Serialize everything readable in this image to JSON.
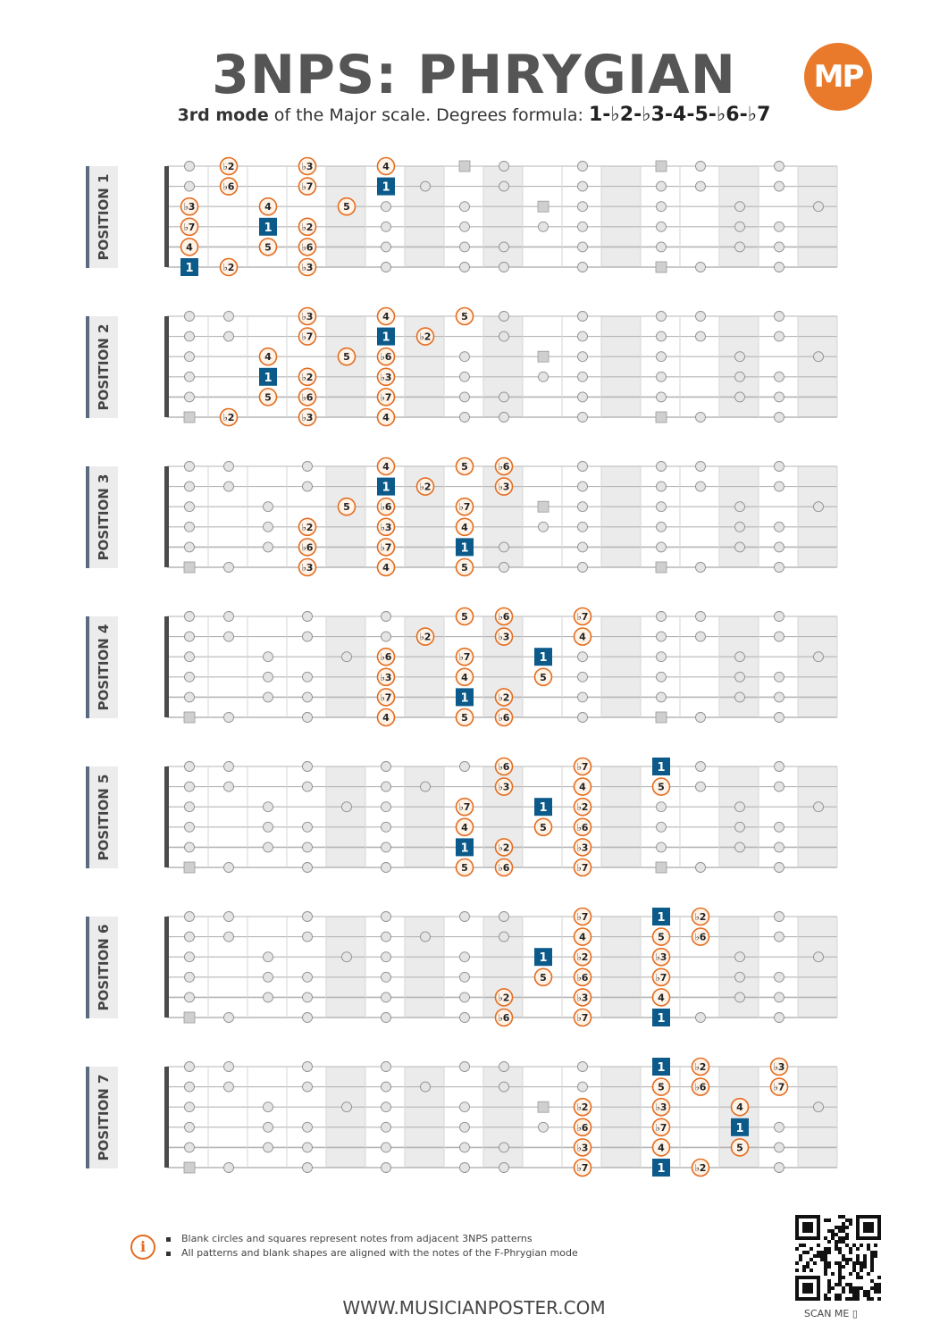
{
  "header": {
    "title": "3NPS: PHRYGIAN",
    "subtitle_bold": "3rd mode",
    "subtitle_text": " of the Major scale. Degrees formula: ",
    "formula": "1-♭2-♭3-4-5-♭6-♭7",
    "logo": "MP"
  },
  "colors": {
    "accent": "#e36c1f",
    "root": "#0b5a8a",
    "ghost": "#cfcfcf",
    "shade": "#ebebeb"
  },
  "positions": [
    {
      "label": "POSITION 1",
      "notes": [
        [
          6,
          0,
          "1"
        ],
        [
          6,
          1,
          "♭2"
        ],
        [
          6,
          3,
          "♭3"
        ],
        [
          5,
          0,
          "4"
        ],
        [
          5,
          2,
          "5"
        ],
        [
          5,
          3,
          "♭6"
        ],
        [
          4,
          0,
          "♭7"
        ],
        [
          4,
          2,
          "1"
        ],
        [
          4,
          3,
          "♭2"
        ],
        [
          3,
          0,
          "♭3"
        ],
        [
          3,
          2,
          "4"
        ],
        [
          3,
          4,
          "5"
        ],
        [
          2,
          1,
          "♭6"
        ],
        [
          2,
          3,
          "♭7"
        ],
        [
          2,
          5,
          "1"
        ],
        [
          1,
          1,
          "♭2"
        ],
        [
          1,
          3,
          "♭3"
        ],
        [
          1,
          5,
          "4"
        ]
      ]
    },
    {
      "label": "POSITION 2",
      "notes": [
        [
          6,
          1,
          "♭2"
        ],
        [
          6,
          3,
          "♭3"
        ],
        [
          6,
          5,
          "4"
        ],
        [
          5,
          2,
          "5"
        ],
        [
          5,
          3,
          "♭6"
        ],
        [
          5,
          5,
          "♭7"
        ],
        [
          4,
          2,
          "1"
        ],
        [
          4,
          3,
          "♭2"
        ],
        [
          4,
          5,
          "♭3"
        ],
        [
          3,
          2,
          "4"
        ],
        [
          3,
          4,
          "5"
        ],
        [
          3,
          5,
          "♭6"
        ],
        [
          2,
          3,
          "♭7"
        ],
        [
          2,
          5,
          "1"
        ],
        [
          2,
          6,
          "♭2"
        ],
        [
          1,
          3,
          "♭3"
        ],
        [
          1,
          5,
          "4"
        ],
        [
          1,
          7,
          "5"
        ]
      ]
    },
    {
      "label": "POSITION 3",
      "notes": [
        [
          6,
          3,
          "♭3"
        ],
        [
          6,
          5,
          "4"
        ],
        [
          6,
          7,
          "5"
        ],
        [
          5,
          3,
          "♭6"
        ],
        [
          5,
          5,
          "♭7"
        ],
        [
          5,
          7,
          "1"
        ],
        [
          4,
          3,
          "♭2"
        ],
        [
          4,
          5,
          "♭3"
        ],
        [
          4,
          7,
          "4"
        ],
        [
          3,
          4,
          "5"
        ],
        [
          3,
          5,
          "♭6"
        ],
        [
          3,
          7,
          "♭7"
        ],
        [
          2,
          5,
          "1"
        ],
        [
          2,
          6,
          "♭2"
        ],
        [
          2,
          8,
          "♭3"
        ],
        [
          1,
          5,
          "4"
        ],
        [
          1,
          7,
          "5"
        ],
        [
          1,
          8,
          "♭6"
        ]
      ]
    },
    {
      "label": "POSITION 4",
      "notes": [
        [
          6,
          5,
          "4"
        ],
        [
          6,
          7,
          "5"
        ],
        [
          6,
          8,
          "♭6"
        ],
        [
          5,
          5,
          "♭7"
        ],
        [
          5,
          7,
          "1"
        ],
        [
          5,
          8,
          "♭2"
        ],
        [
          4,
          5,
          "♭3"
        ],
        [
          4,
          7,
          "4"
        ],
        [
          4,
          9,
          "5"
        ],
        [
          3,
          5,
          "♭6"
        ],
        [
          3,
          7,
          "♭7"
        ],
        [
          3,
          9,
          "1"
        ],
        [
          2,
          6,
          "♭2"
        ],
        [
          2,
          8,
          "♭3"
        ],
        [
          2,
          10,
          "4"
        ],
        [
          1,
          7,
          "5"
        ],
        [
          1,
          8,
          "♭6"
        ],
        [
          1,
          10,
          "♭7"
        ]
      ]
    },
    {
      "label": "POSITION 5",
      "notes": [
        [
          6,
          7,
          "5"
        ],
        [
          6,
          8,
          "♭6"
        ],
        [
          6,
          10,
          "♭7"
        ],
        [
          5,
          7,
          "1"
        ],
        [
          5,
          8,
          "♭2"
        ],
        [
          5,
          10,
          "♭3"
        ],
        [
          4,
          7,
          "4"
        ],
        [
          4,
          9,
          "5"
        ],
        [
          4,
          10,
          "♭6"
        ],
        [
          3,
          7,
          "♭7"
        ],
        [
          3,
          9,
          "1"
        ],
        [
          3,
          10,
          "♭2"
        ],
        [
          2,
          8,
          "♭3"
        ],
        [
          2,
          10,
          "4"
        ],
        [
          2,
          12,
          "5"
        ],
        [
          1,
          8,
          "♭6"
        ],
        [
          1,
          10,
          "♭7"
        ],
        [
          1,
          12,
          "1"
        ]
      ]
    },
    {
      "label": "POSITION 6",
      "notes": [
        [
          6,
          8,
          "♭6"
        ],
        [
          6,
          10,
          "♭7"
        ],
        [
          6,
          12,
          "1"
        ],
        [
          5,
          8,
          "♭2"
        ],
        [
          5,
          10,
          "♭3"
        ],
        [
          5,
          12,
          "4"
        ],
        [
          4,
          9,
          "5"
        ],
        [
          4,
          10,
          "♭6"
        ],
        [
          4,
          12,
          "♭7"
        ],
        [
          3,
          9,
          "1"
        ],
        [
          3,
          10,
          "♭2"
        ],
        [
          3,
          12,
          "♭3"
        ],
        [
          2,
          10,
          "4"
        ],
        [
          2,
          12,
          "5"
        ],
        [
          2,
          13,
          "♭6"
        ],
        [
          1,
          10,
          "♭7"
        ],
        [
          1,
          12,
          "1"
        ],
        [
          1,
          13,
          "♭2"
        ]
      ]
    },
    {
      "label": "POSITION 7",
      "notes": [
        [
          6,
          10,
          "♭7"
        ],
        [
          6,
          12,
          "1"
        ],
        [
          6,
          13,
          "♭2"
        ],
        [
          5,
          10,
          "♭3"
        ],
        [
          5,
          12,
          "4"
        ],
        [
          5,
          14,
          "5"
        ],
        [
          4,
          10,
          "♭6"
        ],
        [
          4,
          12,
          "♭7"
        ],
        [
          4,
          14,
          "1"
        ],
        [
          3,
          10,
          "♭2"
        ],
        [
          3,
          12,
          "♭3"
        ],
        [
          3,
          14,
          "4"
        ],
        [
          2,
          12,
          "5"
        ],
        [
          2,
          13,
          "♭6"
        ],
        [
          2,
          15,
          "♭7"
        ],
        [
          1,
          12,
          "1"
        ],
        [
          1,
          13,
          "♭2"
        ],
        [
          1,
          15,
          "♭3"
        ]
      ]
    }
  ],
  "footer": {
    "note1": "Blank circles and squares represent notes from adjacent 3NPS patterns",
    "note2": "All patterns and blank shapes are aligned with the notes of the F-Phrygian mode",
    "website": "WWW.MUSICIANPOSTER.COM",
    "scan": "SCAN ME"
  }
}
